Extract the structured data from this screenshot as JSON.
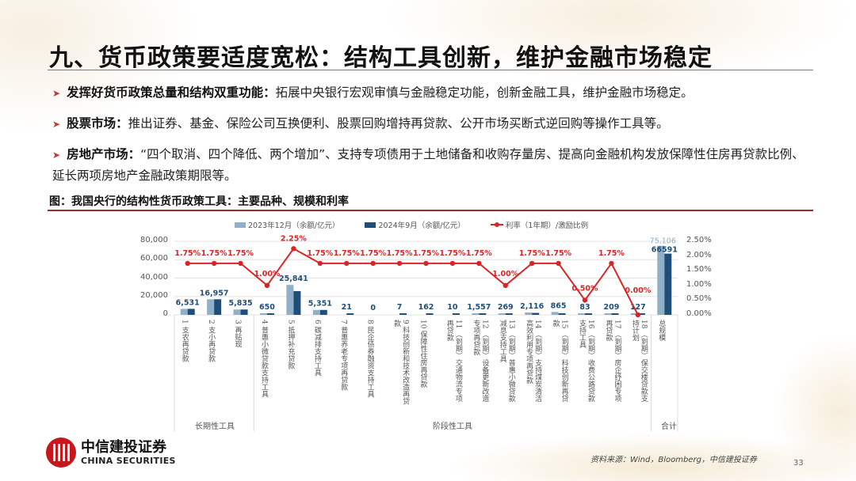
{
  "page": {
    "title": "九、货币政策要适度宽松：结构工具创新，维护金融市场稳定",
    "page_number": "33"
  },
  "bullets": [
    {
      "lead": "发挥好货币政策总量和结构双重功能：",
      "text": "拓展中央银行宏观审慎与金融稳定功能，创新金融工具，维护金融市场稳定。"
    },
    {
      "lead": "股票市场：",
      "text": "推出证券、基金、保险公司互换便利、股票回购增持再贷款、公开市场买断式逆回购等操作工具等。"
    },
    {
      "lead": "房地产市场：",
      "text": "“四个取消、四个降低、两个增加”、支持专项债用于土地储备和收购存量房、提高向金融机构发放保障性住房再贷款比例、延长两项房地产金融政策期限等。"
    }
  ],
  "figure": {
    "caption": "图：我国央行的结构性货币政策工具：主要品种、规模和利率",
    "source": "资料来源：Wind，Bloomberg，中信建投证券"
  },
  "logo": {
    "cn": "中信建投证券",
    "en": "CHINA SECURITIES"
  },
  "colors": {
    "series_2023": "#8fb0c8",
    "series_2024": "#1f4e79",
    "rate_line": "#d62728",
    "label_amount": "#1f4e79",
    "label_rate": "#d62728",
    "accent_rule": "#9b2a2a"
  },
  "chart_data": {
    "type": "bar",
    "title": "我国央行的结构性货币政策工具：主要品种、规模和利率",
    "legend": [
      "2023年12月（余额/亿元）",
      "2024年9月（余额/亿元）",
      "利率（1年期）/激励比例"
    ],
    "legend_position": "top",
    "categories": [
      "1 支农再贷款",
      "2 支小再贷款",
      "3 再贴现",
      "4 普惠小微贷款支持工具",
      "5 抵押补充贷款",
      "6 碳减排支持工具",
      "7 普惠养老专项再贷款",
      "8 民企债券融资支持工具",
      "9 科技创新和技术改造再贷款",
      "10 保障性住房再贷款",
      "11 （到期）交通物流专项再贷款",
      "12 （到期）设备更新改造专项再贷款",
      "13 （到期）普惠小微贷款减息支持工具",
      "14 （到期）支持煤炭清洁高效利用专项再贷款",
      "15 （到期）科技创新再贷款",
      "16 （到期）收费公路贷款支持工具",
      "17 （到期）房企纾困专项再贷款",
      "18 （到期）保交楼贷款支持计划",
      "总规模"
    ],
    "category_groups": [
      {
        "name": "长期性工具",
        "from": 0,
        "to": 2
      },
      {
        "name": "阶段性工具",
        "from": 3,
        "to": 17
      },
      {
        "name": "合计",
        "from": 18,
        "to": 18
      }
    ],
    "series": [
      {
        "name": "2023年12月（余额/亿元）",
        "axis": "left",
        "values": [
          6531,
          16957,
          5835,
          650,
          32522,
          5410,
          0,
          0,
          0,
          0,
          0,
          1557,
          269,
          2554,
          3168,
          83,
          209,
          127,
          75106
        ]
      },
      {
        "name": "2024年9月（余额/亿元）",
        "axis": "left",
        "values": [
          6531,
          16957,
          5835,
          650,
          25841,
          5351,
          21,
          0,
          7,
          162,
          10,
          1557,
          269,
          2116,
          865,
          83,
          209,
          127,
          66591
        ]
      },
      {
        "name": "利率（1年期）/激励比例",
        "type": "line",
        "axis": "right",
        "values": [
          1.75,
          1.75,
          1.75,
          1.0,
          2.25,
          1.75,
          1.75,
          1.75,
          1.75,
          1.75,
          1.75,
          1.75,
          1.0,
          1.75,
          1.75,
          0.5,
          1.75,
          0.0,
          null
        ]
      }
    ],
    "bar_labels": [
      "6,531",
      "16,957",
      "5,835",
      "650",
      "25,841",
      "5,351",
      "21",
      "0",
      "7",
      "162",
      "10",
      "1,557",
      "269",
      "2,116",
      "865",
      "83",
      "209",
      "127",
      "66591"
    ],
    "total_label_2023": "75,106",
    "rate_labels": [
      "1.75%",
      "1.75%",
      "1.75%",
      "1.00%",
      "2.25%",
      "1.75%",
      "1.75%",
      "1.75%",
      "1.75%",
      "1.75%",
      "1.75%",
      "1.75%",
      "1.00%",
      "1.75%",
      "1.75%",
      "0.50%",
      "1.75%",
      "0.00%",
      ""
    ],
    "y_left": {
      "ticks": [
        "0",
        "20,000",
        "40,000",
        "60,000",
        "80,000"
      ],
      "range": [
        0,
        80000
      ]
    },
    "y_right": {
      "ticks": [
        "0.00%",
        "0.50%",
        "1.00%",
        "1.50%",
        "2.00%",
        "2.50%"
      ],
      "range": [
        0,
        2.5
      ]
    },
    "xlabel": "",
    "ylabel": "",
    "grid": true
  }
}
